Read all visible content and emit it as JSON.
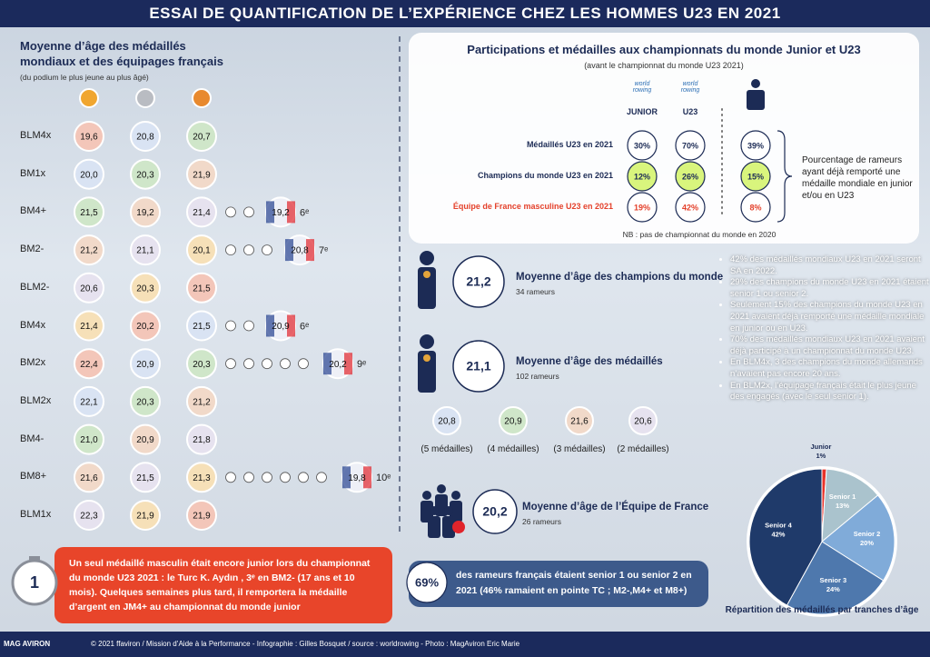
{
  "header": {
    "title": "ESSAI DE QUANTIFICATION DE L’EXPÉRIENCE CHEZ LES HOMMES U23 EN 2021"
  },
  "left": {
    "title": "Moyenne d’âge des médaillés mondiaux et des équipages français",
    "subtitle": "(du podium le plus jeune au plus âgé)",
    "rows": [
      {
        "boat": "BLM4x",
        "ages": [
          "19,6",
          "20,8",
          "20,7"
        ]
      },
      {
        "boat": "BM1x",
        "ages": [
          "20,0",
          "20,3",
          "21,9"
        ]
      },
      {
        "boat": "BM4+",
        "ages": [
          "21,5",
          "19,2",
          "21,4"
        ],
        "france": "19,2",
        "rank": "6ᵉ"
      },
      {
        "boat": "BM2-",
        "ages": [
          "21,2",
          "21,1",
          "20,1"
        ],
        "france": "20,8",
        "rank": "7ᵉ"
      },
      {
        "boat": "BLM2-",
        "ages": [
          "20,6",
          "20,3",
          "21,5"
        ]
      },
      {
        "boat": "BM4x",
        "ages": [
          "21,4",
          "20,2",
          "21,5"
        ],
        "france": "20,9",
        "rank": "6ᵉ"
      },
      {
        "boat": "BM2x",
        "ages": [
          "22,4",
          "20,9",
          "20,3"
        ],
        "france": "20,2",
        "rank": "9ᵉ"
      },
      {
        "boat": "BLM2x",
        "ages": [
          "22,1",
          "20,3",
          "21,2"
        ]
      },
      {
        "boat": "BM4-",
        "ages": [
          "21,0",
          "20,9",
          "21,8"
        ]
      },
      {
        "boat": "BM8+",
        "ages": [
          "21,6",
          "21,5",
          "21,3"
        ],
        "france": "19,8",
        "rank": "10ᵉ"
      },
      {
        "boat": "BLM1x",
        "ages": [
          "22,3",
          "21,9",
          "21,9"
        ]
      }
    ]
  },
  "participations": {
    "title": "Participations et médailles aux championnats du monde Junior et U23",
    "subtitle": "(avant le championnat du monde U23 2021)",
    "logo": "world rowing",
    "columns": [
      "JUNIOR",
      "U23"
    ],
    "rows": [
      {
        "label": "Médaillés U23 en 2021",
        "values": [
          "30%",
          "70%",
          "39%"
        ]
      },
      {
        "label": "Champions du monde U23 en 2021",
        "values": [
          "12%",
          "26%",
          "15%"
        ]
      },
      {
        "label": "Équipe de  France masculine U23 en 2021",
        "values": [
          "19%",
          "42%",
          "8%"
        ]
      }
    ],
    "brace_text": "Pourcentage de rameurs ayant déjà remporté une médaille mondiale en junior et/ou en U23",
    "note": "NB : pas de championnat du monde en 2020"
  },
  "stats": [
    {
      "value": "21,2",
      "title": "Moyenne d’âge des champions du monde",
      "subtitle": "34 rameurs"
    },
    {
      "value": "21,1",
      "title": "Moyenne d’âge des médaillés",
      "subtitle": "102 rameurs"
    },
    {
      "value": "20,2",
      "title": "Moyenne d’âge de l’Équipe de France",
      "subtitle": "26 rameurs"
    }
  ],
  "medal_ages": [
    {
      "value": "20,8",
      "caption": "(5 médailles)"
    },
    {
      "value": "20,9",
      "caption": "(4 médailles)"
    },
    {
      "value": "21,6",
      "caption": "(3 médailles)"
    },
    {
      "value": "20,6",
      "caption": "(2 médailles)"
    }
  ],
  "bullets": [
    "42% des médaillés mondiaux U23 en 2021 seront SA en 2022.",
    "29% des champions du monde U23 en 2021 étaient senior 1 ou senior 2.",
    "Seulement 15% des champions du monde U23 en 2021 avaient déjà remporté une médaille mondiale en junior ou en U23.",
    "70% des médaillés mondiaux U23 en 2021 avaient déjà participé à un championnat du monde U23.",
    "En BLM4x, 3 des champions du monde allemands n’avaient pas encore 20 ans.",
    "En BLM2x, l’équipage français était le plus jeune des engagés (avec le seul senior 1)."
  ],
  "junior_callout": {
    "number": "1",
    "text": "Un seul médaillé masculin était encore junior lors du championnat du monde U23 2021 : le Turc K. Aydın , 3ᵉ en BM2- (17 ans et 10 mois). Quelques semaines plus tard, il remportera la médaille d’argent en JM4+ au championnat du monde junior"
  },
  "senior_callout": {
    "number": "69%",
    "text": "des rameurs français étaient senior 1 ou senior 2 en 2021 (46% ramaient en pointe TC ; M2-,M4+ et M8+)"
  },
  "age_pie": {
    "type": "pie",
    "title": "Répartition des médaillés par tranches d’âge",
    "categories": [
      "Junior",
      "Senior 1",
      "Senior 2",
      "Senior 3",
      "Senior 4"
    ],
    "values": [
      1,
      13,
      20,
      24,
      42
    ],
    "value_labels": [
      "1%",
      "13%",
      "20%",
      "24%",
      "42%"
    ],
    "colors": [
      "#e8332a",
      "#aac3cd",
      "#80abd9",
      "#4e78ad",
      "#1f3a6a"
    ]
  },
  "footer": {
    "credits": "© 2021 ffaviron / Mission d’Aide à la Performance - Infographie : Gilles Bosquet / source : worldrowing - Photo : MagAviron Eric Marie",
    "logo": "MAG AVIRON"
  }
}
